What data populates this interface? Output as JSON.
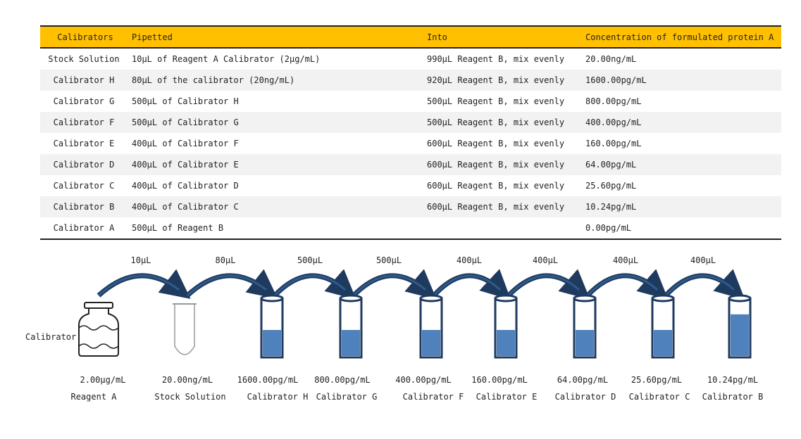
{
  "table": {
    "headers": [
      "Calibrators",
      "Pipetted",
      "Into",
      "Concentration of formulated protein A"
    ],
    "rows": [
      [
        "Stock Solution",
        "10μL of Reagent A Calibrator (2μg/mL)",
        "990μL Reagent B, mix evenly",
        "20.00ng/mL"
      ],
      [
        "Calibrator H",
        "80μL of the calibrator (20ng/mL)",
        "920μL Reagent B, mix evenly",
        "1600.00pg/mL"
      ],
      [
        "Calibrator G",
        "500μL of Calibrator H",
        "500μL Reagent B, mix evenly",
        "800.00pg/mL"
      ],
      [
        "Calibrator F",
        "500μL of Calibrator G",
        "500μL Reagent B, mix evenly",
        "400.00pg/mL"
      ],
      [
        "Calibrator E",
        "400μL of Calibrator F",
        "600μL Reagent B, mix evenly",
        "160.00pg/mL"
      ],
      [
        "Calibrator D",
        "400μL of Calibrator E",
        "600μL Reagent B, mix evenly",
        "64.00pg/mL"
      ],
      [
        "Calibrator C",
        "400μL of Calibrator D",
        "600μL Reagent B, mix evenly",
        "25.60pg/mL"
      ],
      [
        "Calibrator B",
        "400μL of Calibrator C",
        "600μL Reagent B, mix evenly",
        "10.24pg/mL"
      ],
      [
        "Calibrator A",
        "500μL of Reagent B",
        "",
        "0.00pg/mL"
      ]
    ]
  },
  "diagram": {
    "side_label": "Calibrator",
    "transfers": [
      "10μL",
      "80μL",
      "500μL",
      "500μL",
      "400μL",
      "400μL",
      "400μL",
      "400μL"
    ],
    "vessels": [
      {
        "kind": "bottle",
        "concentration": "2.00μg/mL",
        "name": "Reagent A"
      },
      {
        "kind": "empty-tube",
        "concentration": "20.00ng/mL",
        "name": "Stock Solution"
      },
      {
        "kind": "tube",
        "fill_fraction": 0.5,
        "concentration": "1600.00pg/mL",
        "name": "Calibrator H"
      },
      {
        "kind": "tube",
        "fill_fraction": 0.5,
        "concentration": "800.00pg/mL",
        "name": "Calibrator G"
      },
      {
        "kind": "tube",
        "fill_fraction": 0.5,
        "concentration": "400.00pg/mL",
        "name": "Calibrator F"
      },
      {
        "kind": "tube",
        "fill_fraction": 0.5,
        "concentration": "160.00pg/mL",
        "name": "Calibrator E"
      },
      {
        "kind": "tube",
        "fill_fraction": 0.5,
        "concentration": "64.00pg/mL",
        "name": "Calibrator D"
      },
      {
        "kind": "tube",
        "fill_fraction": 0.5,
        "concentration": "25.60pg/mL",
        "name": "Calibrator C"
      },
      {
        "kind": "tube",
        "fill_fraction": 0.8,
        "concentration": "10.24pg/mL",
        "name": "Calibrator B"
      }
    ],
    "colors": {
      "liquid": "#4f81bd",
      "outline": "#1f3a5f",
      "arrow": "#1f3a5f",
      "header": "#ffc000"
    }
  }
}
